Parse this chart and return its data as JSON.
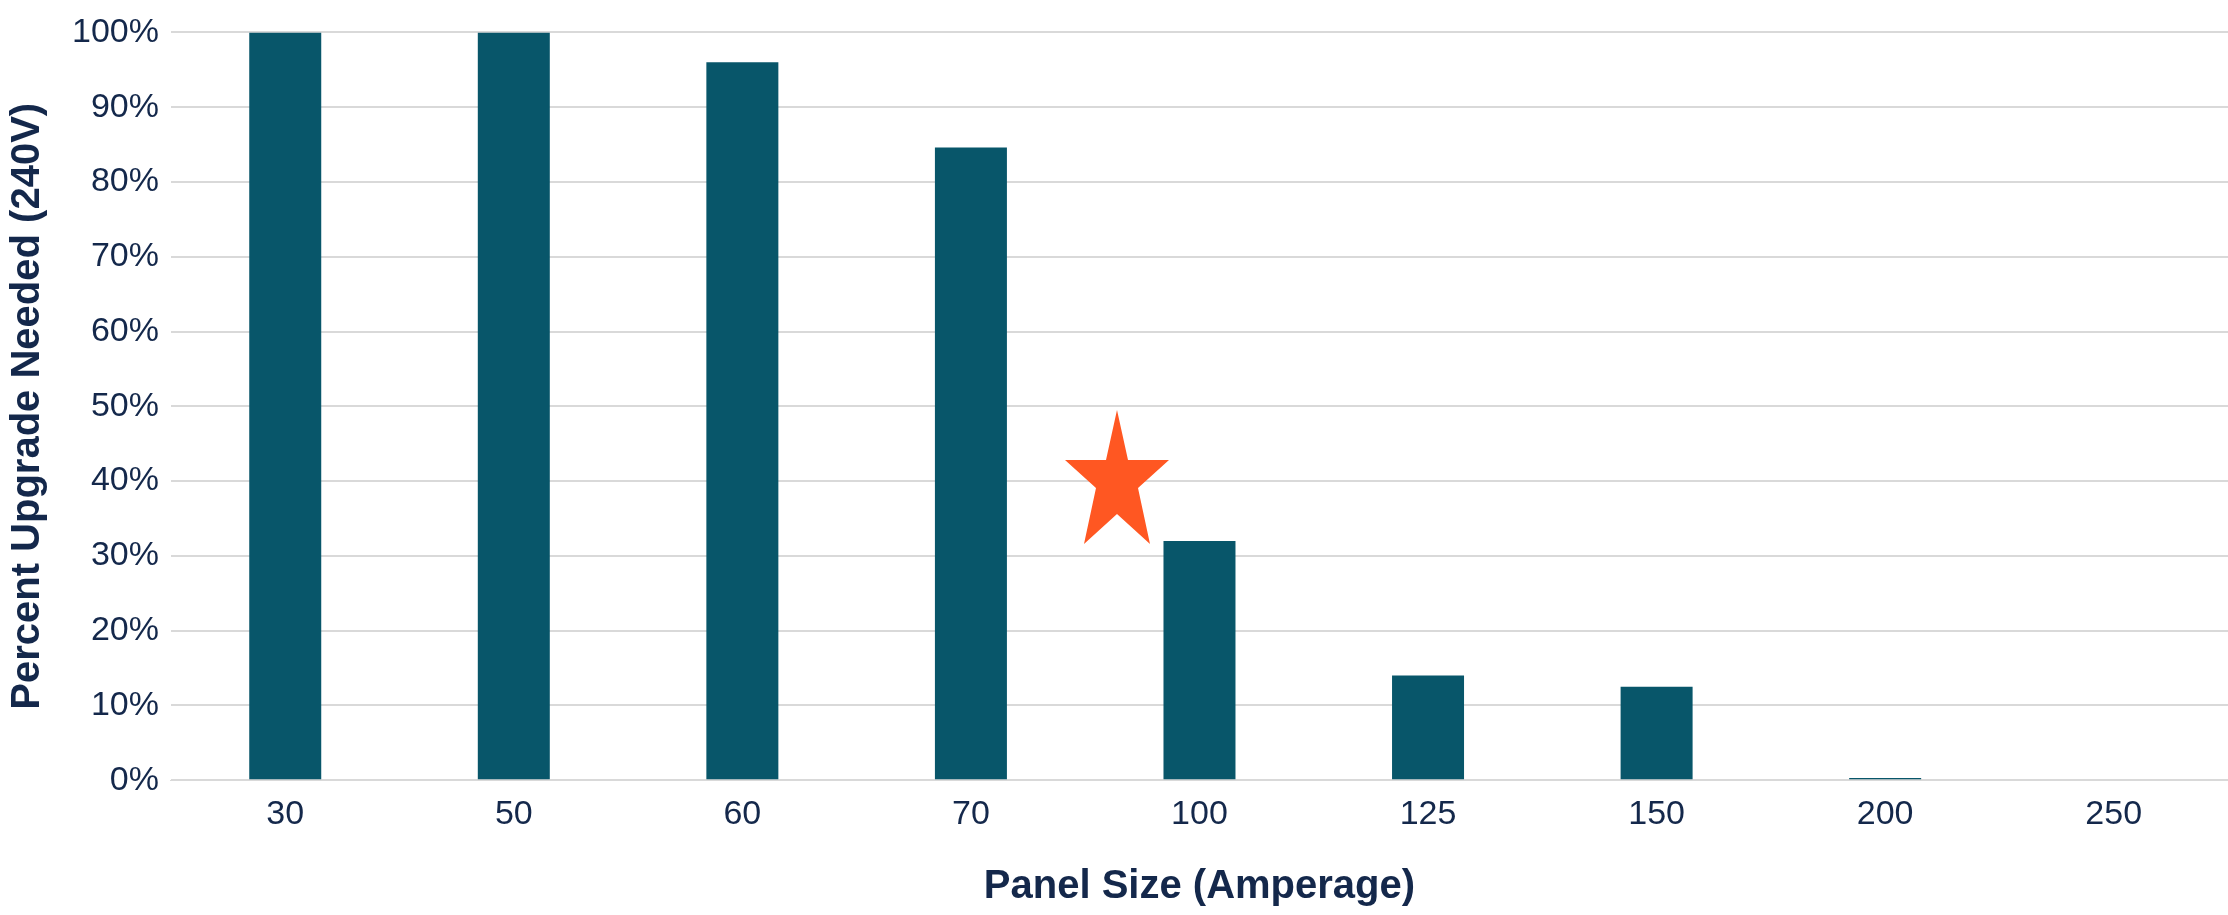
{
  "chart_data": {
    "type": "bar",
    "xlabel": "Panel Size (Amperage)",
    "ylabel": "Percent Upgrade Needed (240V)",
    "categories": [
      "30",
      "50",
      "60",
      "70",
      "100",
      "125",
      "150",
      "200",
      "250"
    ],
    "values": [
      100,
      100,
      96,
      84.6,
      32,
      14,
      12.5,
      0.3,
      0
    ],
    "color": "#08566a",
    "ylim": [
      0,
      100
    ],
    "yticks": [
      {
        "value": 0,
        "label": "0%"
      },
      {
        "value": 10,
        "label": "10%"
      },
      {
        "value": 20,
        "label": "20%"
      },
      {
        "value": 30,
        "label": "30%"
      },
      {
        "value": 40,
        "label": "40%"
      },
      {
        "value": 50,
        "label": "50%"
      },
      {
        "value": 60,
        "label": "60%"
      },
      {
        "value": 70,
        "label": "70%"
      },
      {
        "value": 80,
        "label": "80%"
      },
      {
        "value": 90,
        "label": "90%"
      },
      {
        "value": 100,
        "label": "100%"
      }
    ],
    "grid": "y"
  }
}
